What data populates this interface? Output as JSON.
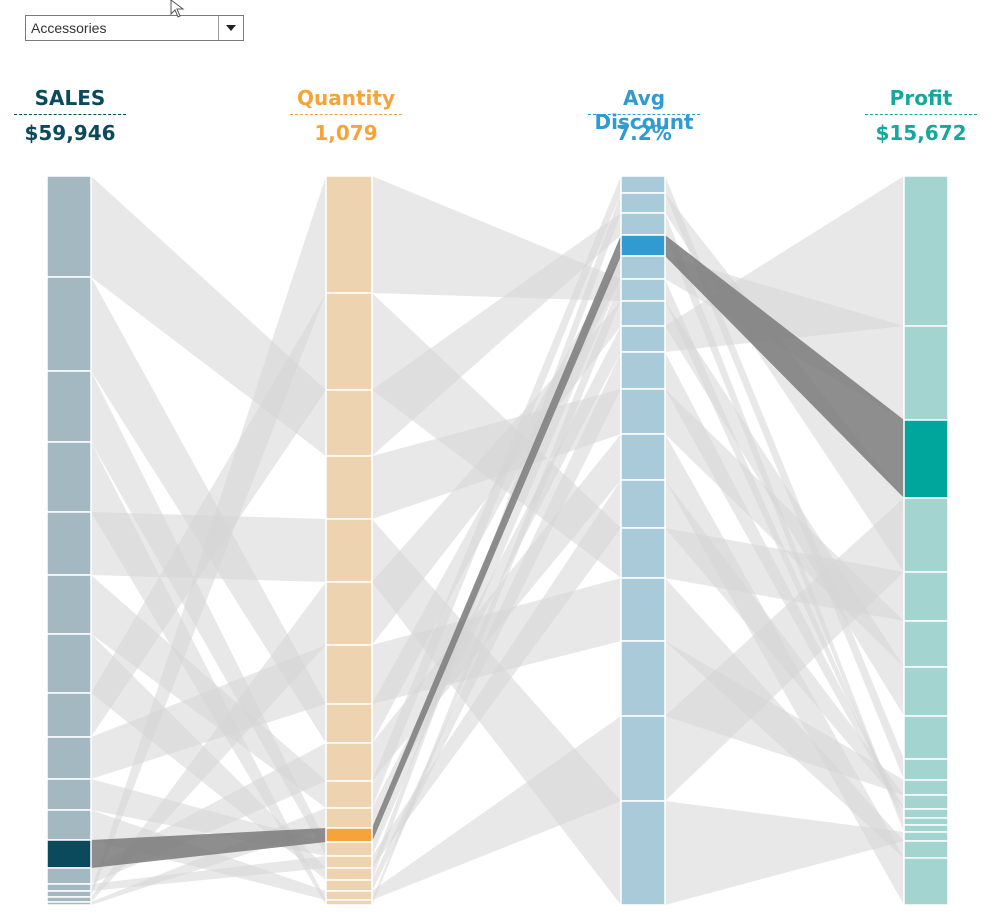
{
  "filter": {
    "selected": "Accessories"
  },
  "measures": [
    {
      "name": "SALES",
      "value": "$59,946",
      "color": "#0b4a5c"
    },
    {
      "name": "Quantity",
      "value": "1,079",
      "color": "#f5a33a"
    },
    {
      "name": "Avg Discount",
      "value": "7.2%",
      "color": "#2f9bd0"
    },
    {
      "name": "Profit",
      "value": "$15,672",
      "color": "#16a89c"
    }
  ],
  "chart_data": {
    "type": "parallel-sets",
    "dimensions": [
      "SALES",
      "Quantity",
      "Avg Discount",
      "Profit"
    ],
    "totals": [
      "$59,946",
      "1,079",
      "7.2%",
      "$15,672"
    ],
    "selected_path": {
      "SALES": 11,
      "Quantity": 11,
      "Avg Discount": 3,
      "Profit": 2
    },
    "colors": {
      "SALES": {
        "base": "#a3b8c0",
        "highlight": "#0b4a5c"
      },
      "Quantity": {
        "base": "#edd3b0",
        "highlight": "#f5a33a"
      },
      "Avg Discount": {
        "base": "#a9cbd9",
        "highlight": "#2f9bd0"
      },
      "Profit": {
        "base": "#a3d4cf",
        "highlight": "#00a69c"
      },
      "link": "#d6d6d6",
      "selected_link": "#7a7a7a"
    }
  }
}
